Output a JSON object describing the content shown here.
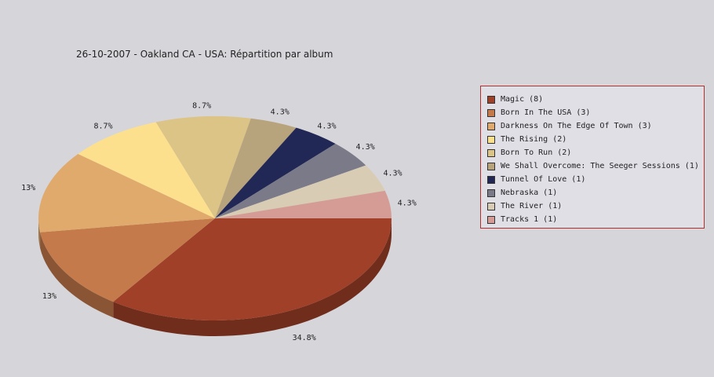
{
  "chart_data": {
    "type": "pie",
    "title": "26-10-2007 - Oakland CA - USA:  Répartition par album",
    "legend_position": "right",
    "slices": [
      {
        "label": "Magic (8)",
        "value": 8,
        "pct_label": "34.8%",
        "color": "#a04028"
      },
      {
        "label": "Born In The USA (3)",
        "value": 3,
        "pct_label": "13%",
        "color": "#c47a4a"
      },
      {
        "label": "Darkness On The Edge Of Town (3)",
        "value": 3,
        "pct_label": "13%",
        "color": "#e0aa6c"
      },
      {
        "label": "The Rising (2)",
        "value": 2,
        "pct_label": "8.7%",
        "color": "#fde08e"
      },
      {
        "label": "Born To Run (2)",
        "value": 2,
        "pct_label": "8.7%",
        "color": "#dcc486"
      },
      {
        "label": "We Shall Overcome: The Seeger Sessions (1)",
        "value": 1,
        "pct_label": "4.3%",
        "color": "#b8a47c"
      },
      {
        "label": "Tunnel Of Love (1)",
        "value": 1,
        "pct_label": "4.3%",
        "color": "#222855"
      },
      {
        "label": "Nebraska (1)",
        "value": 1,
        "pct_label": "4.3%",
        "color": "#7a7a88"
      },
      {
        "label": "The River (1)",
        "value": 1,
        "pct_label": "4.3%",
        "color": "#d8ccb4"
      },
      {
        "label": "Tracks 1 (1)",
        "value": 1,
        "pct_label": "4.3%",
        "color": "#d49c94"
      }
    ]
  }
}
